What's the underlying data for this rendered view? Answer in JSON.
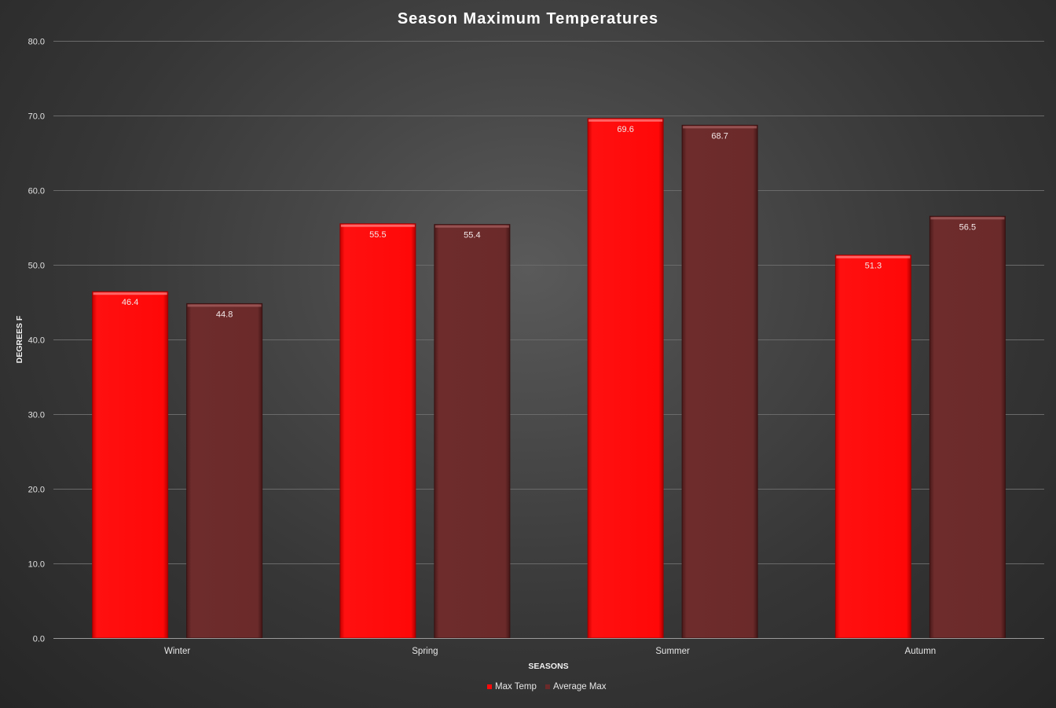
{
  "chart_data": {
    "type": "bar",
    "title": "Season Maximum Temperatures",
    "xlabel": "SEASONS",
    "ylabel": "DEGREES F",
    "categories": [
      "Winter",
      "Spring",
      "Summer",
      "Autumn"
    ],
    "series": [
      {
        "name": "Max Temp",
        "values": [
          46.4,
          55.5,
          69.6,
          51.3
        ],
        "color": "#ff0a0a"
      },
      {
        "name": "Average Max",
        "values": [
          44.8,
          55.4,
          68.7,
          56.5
        ],
        "color": "#6b2a2a"
      }
    ],
    "ylim": [
      0,
      80
    ],
    "yticks": [
      "0.0",
      "10.0",
      "20.0",
      "30.0",
      "40.0",
      "50.0",
      "60.0",
      "70.0",
      "80.0"
    ],
    "data_labels": true,
    "grid": true,
    "legend": "bottom",
    "background": "#3d3d3d"
  }
}
